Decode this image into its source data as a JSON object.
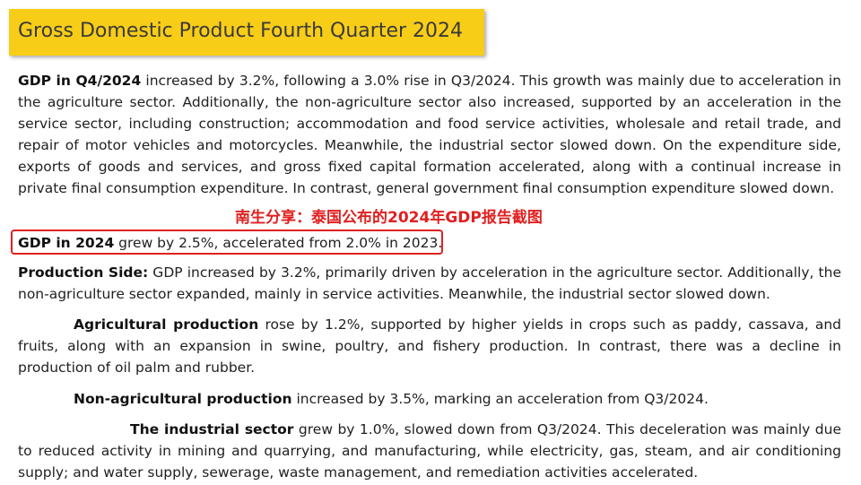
{
  "title": "Gross Domestic Product Fourth Quarter 2024",
  "watermark": "南生分享：泰国公布的2024年GDP报告截图",
  "p1": {
    "bold": "GDP in Q4/2024",
    "text": " increased by 3.2%, following a 3.0% rise in Q3/2024. This growth was mainly due to acceleration in the agriculture sector. Additionally, the non-agriculture sector also increased, supported by an acceleration in the service sector, including construction; accommodation and food service activities, wholesale and retail trade, and repair of motor vehicles and motorcycles. Meanwhile, the industrial sector slowed down. On the expenditure side, exports of goods and services, and gross fixed capital formation accelerated, along with a continual increase in private final consumption expenditure. In contrast, general government final consumption expenditure slowed down."
  },
  "p2": {
    "bold": "GDP in 2024",
    "text": " grew by 2.5%, accelerated from 2.0% in 2023."
  },
  "p3": {
    "bold": "Production Side:",
    "text": " GDP increased by 3.2%, primarily driven by acceleration in the agriculture sector. Additionally, the non-agriculture sector expanded, mainly in service activities. Meanwhile, the industrial sector slowed down."
  },
  "p4": {
    "bold": "Agricultural production",
    "text": " rose by 1.2%, supported by higher yields in crops such as paddy, cassava, and fruits, along with an expansion in swine, poultry, and fishery production. In contrast, there was a decline in production of oil palm and rubber."
  },
  "p5": {
    "bold": "Non-agricultural production",
    "text": " increased by 3.5%, marking an acceleration from Q3/2024."
  },
  "p6": {
    "bold": "The industrial sector",
    "text": " grew by 1.0%, slowed down from Q3/2024. This deceleration was mainly due to reduced activity in mining and quarrying, and manufacturing, while electricity, gas, steam, and air conditioning supply; and water supply, sewerage, waste management, and remediation activities accelerated."
  }
}
